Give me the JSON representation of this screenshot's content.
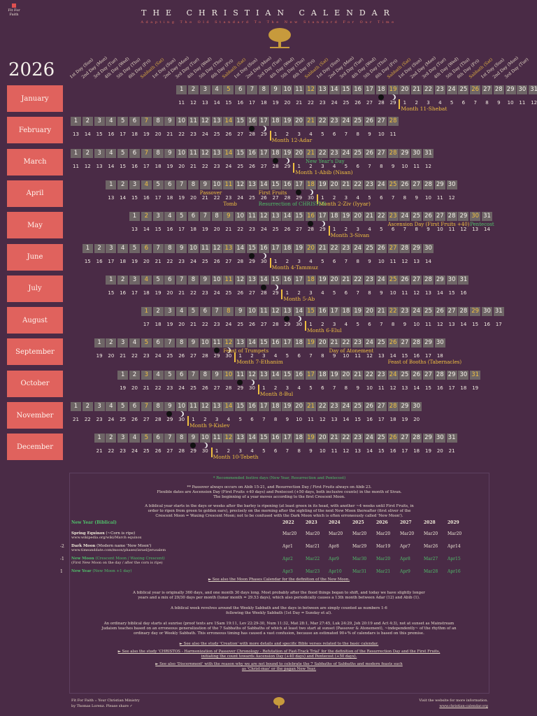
{
  "brand": {
    "name": "Fit For Faith"
  },
  "title": "THE CHRISTIAN CALENDAR",
  "subtitle": "Adapting The Old Standard To The New Standard For Our Time",
  "year": "2026",
  "day_headers": [
    "1st Day (Sun)",
    "2nd Day (Mon)",
    "3rd Day (Tue)",
    "4th Day (Wed)",
    "5th Day (Thu)",
    "6th Day (Fri)",
    "Sabbath (Sat)"
  ],
  "months": [
    {
      "name": "January",
      "start": 9,
      "days": 31,
      "lunar_start": 11,
      "lunar_label": "Month 11-Shebat",
      "newmoon_idx": 19
    },
    {
      "name": "February",
      "start": 0,
      "days": 28,
      "lunar_start": 13,
      "lunar_label": "Month 12-Adar",
      "newmoon_idx": 17
    },
    {
      "name": "March",
      "start": 0,
      "days": 31,
      "lunar_start": 11,
      "lunar_label": "Month 1-Abib (Nisan)",
      "newmoon_idx": 19,
      "extra": "New Year's Day"
    },
    {
      "name": "April",
      "start": 3,
      "days": 30,
      "lunar_start": 13,
      "lunar_label": "Month 2-Ziv (Iyyar)",
      "newmoon_idx": 18,
      "extra": "Passover",
      "extra2": "First Fruits",
      "extra3": "Resurrection of CHRISTOS",
      "extra4": "Tomb"
    },
    {
      "name": "May",
      "start": 5,
      "days": 31,
      "lunar_start": 13,
      "lunar_label": "Month 3-Sivan",
      "newmoon_idx": 17,
      "extra": "Ascension Day (First Fruits +40)",
      "extra2": "Pentecost"
    },
    {
      "name": "June",
      "start": 1,
      "days": 30,
      "lunar_start": 15,
      "lunar_label": "Month 4-Tammuz",
      "newmoon_idx": 16
    },
    {
      "name": "July",
      "start": 3,
      "days": 31,
      "lunar_start": 15,
      "lunar_label": "Month 5-Ab",
      "newmoon_idx": 15
    },
    {
      "name": "August",
      "start": 6,
      "days": 31,
      "lunar_start": 17,
      "lunar_label": "Month 6-Elul",
      "newmoon_idx": 14
    },
    {
      "name": "September",
      "start": 2,
      "days": 30,
      "lunar_start": 19,
      "lunar_label": "Month 7-Ethanim",
      "newmoon_idx": 12,
      "extra": "Feast of Trumpets",
      "extra2": "Day of Atonement",
      "extra3": "Feast of Booths (Tabernacles)"
    },
    {
      "name": "October",
      "start": 4,
      "days": 31,
      "lunar_start": 19,
      "lunar_label": "Month 8-Bul",
      "newmoon_idx": 12
    },
    {
      "name": "November",
      "start": 0,
      "days": 30,
      "lunar_start": 21,
      "lunar_label": "Month 9-Kislev",
      "newmoon_idx": 10
    },
    {
      "name": "December",
      "start": 2,
      "days": 31,
      "lunar_start": 21,
      "lunar_label": "Month 10-Tebeth",
      "newmoon_idx": 10
    }
  ],
  "info": {
    "star_note": "* Recommended festive days (New Year, Resurrection and Pentecost)",
    "passover_note": "** Passover always occurs on Abib 15-21, and Resurrection Day / First Fruits always on Abib 23.",
    "flex_note": "Flexible dates are Ascension Day (First Fruits +40 days) and Pentecost (+50 days, both inclusive counts) in the month of Sivan.",
    "begin_note": "The beginning of a year moves according to the first Crescent Moon.",
    "biblical_year_label": "biblical year",
    "biblical_year_text": "A biblical year starts in the days or weeks after the barley is ripening (at least green in its head, with another ~4 weeks until First Fruits, in order to ripen from green to golden ears), precisely on the morning after the sighting of the next New Moon thereafter (first sliver of the Crescent Moon = Waxing Crescent Moon; not to be confused with the Dark Moon which is often erroneously called 'New Moon').",
    "table_headers": [
      "New Year (Biblical)",
      "2022",
      "2023",
      "2024",
      "2025",
      "2026",
      "2027",
      "2028",
      "2029"
    ],
    "rows": [
      {
        "label": "Spring Equinox",
        "sub": "(~Corn is ripe)",
        "src": "www.wikipedia.org/wiki/March equinox",
        "vals": [
          "Mar20",
          "Mar20",
          "Mar20",
          "Mar20",
          "Mar20",
          "Mar20",
          "Mar20",
          "Mar20"
        ],
        "prefix": ""
      },
      {
        "label": "Dark Moon",
        "sub": "(Modern name 'New Moon')",
        "src": "www.timeanddate.com/moon/phases/israel/jerusalem",
        "vals": [
          "Apr1",
          "Mar21",
          "Apr8",
          "Mar29",
          "Mar19",
          "Apr7",
          "Mar26",
          "Apr14"
        ],
        "prefix": "-2"
      },
      {
        "label": "New Moon",
        "sub": "(Crescent Moon / Waxing Crescent)",
        "src": "(First New Moon on the day / after the corn is ripe)",
        "vals": [
          "Apr2",
          "Mar22",
          "Apr9",
          "Mar30",
          "Mar20",
          "Apr8",
          "Mar27",
          "Apr15"
        ],
        "prefix": "-1"
      },
      {
        "label": "New Year",
        "sub": "(New Moon +1 day)",
        "src": "",
        "vals": [
          "Apr3",
          "Mar23",
          "Apr10",
          "Mar31",
          "Mar21",
          "Apr9",
          "Mar28",
          "Apr16"
        ],
        "prefix": "1"
      }
    ],
    "moon_link": "► See also the Moon Phases Calendar for the definition of the New Moon.",
    "year_text": "A biblical year is originally 360 days, and one month 30 days long. Most probably after the flood things began to shift, and today we have slightly longer years and a mix of 29/30 days per month (lunar month = 29.53 days), which also periodically causes a 13th month between Adar (12) and Abib (1).",
    "week_text": "A biblical week revolves around the Weekly Sabbath and the days in between are simply counted as numbers 1-6 following the Weekly Sabbath (1st Day = Sunday et al).",
    "day_text": "An ordinary biblical day starts at sunrise (proof texts are 1Sam 19:11, Lev 22:29-30, Num 11:32, Mat 28:1, Mar 27:45, Luk 24:29, Joh 20:19 and Act 4:3), not at sunset as Mainstream Judaism teaches based on an erroneous generalization of the 7 Sabbaths of Sabbaths of which at least two start at sunset (Passover & Atonement), ~independently~ of the rhythm of an ordinary day or Weekly Sabbath. This erroneous timing has caused a vast confusion, because an estimated 90+% of calendars is based on this premise.",
    "link1": "► See also the study 'Creation' with more details and specific Bible verses related to the basic calendar.",
    "link2": "► See also the study 'CHRISTOS - Harmonization of Passover Chronology - Refutation of Fast-Track Trial' for the definition of the Resurrection Day and the First Fruits, initiating the count towards Ascension Day (+40 days) and Pentecost (+50 days).",
    "link3": "► See also 'Discernment' with the reason why we are not bound to celebrate the 7 Sabbaths of Sabbaths and modern feasts such as 'Christ-mas' or the pagan New Year."
  },
  "footer": {
    "left1": "Fit For Faith :: Your Christian Ministry",
    "left2": "by Thomas Lorenz. Please share ✓",
    "right1": "Visit the website for more information.",
    "right2": "www.christian-calendar.org"
  }
}
